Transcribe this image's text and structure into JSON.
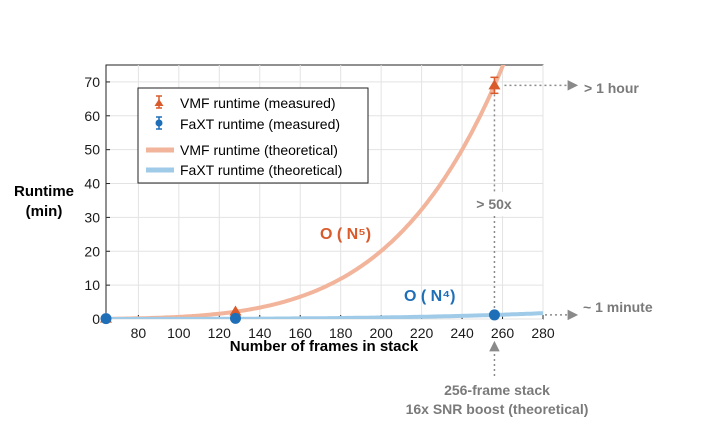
{
  "chart_data": {
    "type": "line",
    "xlabel": "Number of frames in stack",
    "ylabel_line1": "Runtime",
    "ylabel_line2": "(min)",
    "xlim": [
      64,
      280
    ],
    "ylim": [
      0,
      75
    ],
    "xticks": [
      80,
      100,
      120,
      140,
      160,
      180,
      200,
      220,
      240,
      260,
      280
    ],
    "yticks": [
      0,
      10,
      20,
      30,
      40,
      50,
      60,
      70
    ],
    "grid": true,
    "legend_position": "top-left",
    "series": [
      {
        "name": "VMF runtime (measured)",
        "kind": "points",
        "color": "#d95a2b",
        "marker": "triangle",
        "x": [
          64,
          128,
          256
        ],
        "y": [
          0.1,
          2.2,
          69
        ]
      },
      {
        "name": "FaXT runtime (measured)",
        "kind": "points",
        "color": "#1f6fb8",
        "marker": "circle",
        "x": [
          64,
          128,
          256
        ],
        "y": [
          0.1,
          0.2,
          1.2
        ]
      },
      {
        "name": "VMF runtime (theoretical)",
        "kind": "curve",
        "color": "#f2b49a",
        "model": "power",
        "exponent": 5,
        "anchor_x": 256,
        "anchor_y": 69
      },
      {
        "name": "FaXT runtime (theoretical)",
        "kind": "curve",
        "color": "#9fcbe8",
        "model": "power",
        "exponent": 4,
        "anchor_x": 256,
        "anchor_y": 1.2
      }
    ],
    "annotations": {
      "vmf_complexity": "O ( N⁵)",
      "faxt_complexity": "O ( N⁴)",
      "speedup": "> 50x",
      "vmf_right": "> 1 hour",
      "faxt_right": "~ 1 minute",
      "bottom_line1": "256-frame stack",
      "bottom_line2": "16x SNR boost (theoretical)"
    },
    "colors": {
      "vmf_complexity": "#d95a2b",
      "faxt_complexity": "#1f6fb8"
    }
  }
}
